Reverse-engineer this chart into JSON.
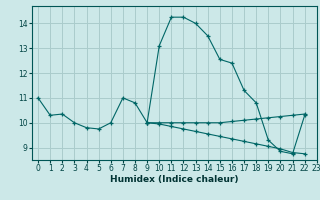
{
  "title": "",
  "xlabel": "Humidex (Indice chaleur)",
  "xlim": [
    -0.5,
    23
  ],
  "ylim": [
    8.5,
    14.7
  ],
  "yticks": [
    9,
    10,
    11,
    12,
    13,
    14
  ],
  "xticks": [
    0,
    1,
    2,
    3,
    4,
    5,
    6,
    7,
    8,
    9,
    10,
    11,
    12,
    13,
    14,
    15,
    16,
    17,
    18,
    19,
    20,
    21,
    22,
    23
  ],
  "background_color": "#cce8e8",
  "grid_color": "#aacccc",
  "line_color": "#006666",
  "series1_x": [
    0,
    1,
    2,
    3,
    4,
    5,
    6,
    7,
    8,
    9,
    10,
    11,
    12,
    13,
    14,
    15,
    16,
    17,
    18,
    19,
    20,
    21,
    22
  ],
  "series1_y": [
    11.0,
    10.3,
    10.35,
    10.0,
    9.8,
    9.75,
    10.0,
    11.0,
    10.8,
    10.0,
    13.1,
    14.25,
    14.25,
    14.0,
    13.5,
    12.55,
    12.4,
    11.3,
    10.8,
    9.3,
    8.85,
    8.75,
    10.3
  ],
  "series2_x": [
    9,
    10,
    11,
    12,
    13,
    14,
    15,
    16,
    17,
    18,
    19,
    20,
    21,
    22
  ],
  "series2_y": [
    10.0,
    10.0,
    10.0,
    10.0,
    10.0,
    10.0,
    10.0,
    10.05,
    10.1,
    10.15,
    10.2,
    10.25,
    10.3,
    10.35
  ],
  "series3_x": [
    9,
    10,
    11,
    12,
    13,
    14,
    15,
    16,
    17,
    18,
    19,
    20,
    21,
    22
  ],
  "series3_y": [
    10.0,
    9.95,
    9.85,
    9.75,
    9.65,
    9.55,
    9.45,
    9.35,
    9.25,
    9.15,
    9.05,
    8.95,
    8.8,
    8.75
  ]
}
